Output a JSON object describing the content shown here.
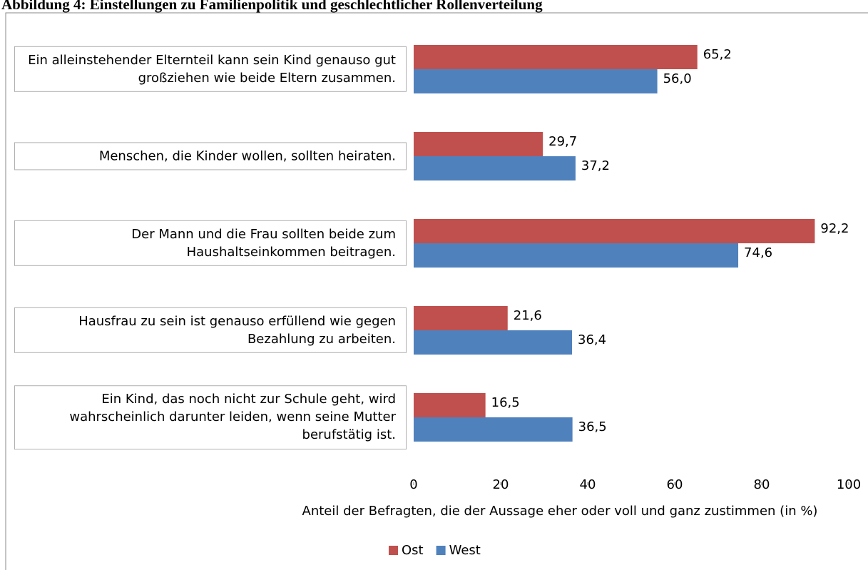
{
  "chart_data": {
    "type": "bar",
    "orientation": "horizontal",
    "title": "Abbildung 4: Einstellungen zu Familienpolitik und geschlechtlicher Rollenverteilung",
    "categories": [
      "Ein alleinstehender Elternteil kann sein Kind genauso gut großziehen wie beide Eltern zusammen.",
      "Menschen, die Kinder wollen, sollten heiraten.",
      "Der Mann und die Frau sollten beide zum Haushaltseinkommen beitragen.",
      "Hausfrau zu sein ist genauso erfüllend wie gegen Bezahlung zu arbeiten.",
      "Ein Kind, das noch nicht zur Schule geht, wird wahrscheinlich darunter leiden, wenn seine Mutter berufstätig ist."
    ],
    "series": [
      {
        "name": "Ost",
        "color": "#c0504d",
        "values": [
          65.2,
          29.7,
          92.2,
          21.6,
          16.5
        ],
        "value_labels": [
          "65,2",
          "29,7",
          "92,2",
          "21,6",
          "16,5"
        ]
      },
      {
        "name": "West",
        "color": "#4f81bd",
        "values": [
          56.0,
          37.2,
          74.6,
          36.4,
          36.5
        ],
        "value_labels": [
          "56,0",
          "37,2",
          "74,6",
          "36,4",
          "36,5"
        ]
      }
    ],
    "xlabel": "Anteil der Befragten, die der Aussage eher oder voll und ganz zustimmen (in %)",
    "xlim": [
      0,
      100
    ],
    "xticks": [
      0,
      20,
      40,
      60,
      80,
      100
    ],
    "legend": "bottom"
  }
}
